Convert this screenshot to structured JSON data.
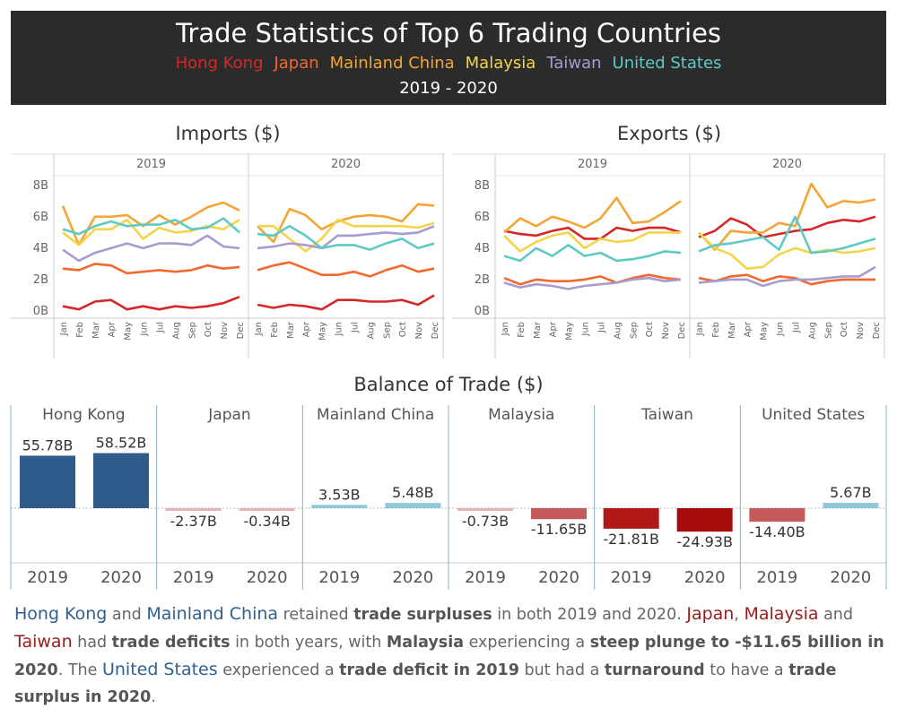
{
  "header": {
    "title": "Trade Statistics of Top 6 Trading Countries",
    "years": "2019 - 2020",
    "legend": [
      {
        "label": "Hong Kong",
        "color": "#d62728"
      },
      {
        "label": "Japan",
        "color": "#f1692e"
      },
      {
        "label": "Mainland China",
        "color": "#f3a636"
      },
      {
        "label": "Malaysia",
        "color": "#f3d44a"
      },
      {
        "label": "Taiwan",
        "color": "#a99bd0"
      },
      {
        "label": "United States",
        "color": "#5fc9c4"
      }
    ]
  },
  "summary": {
    "p1": "Hong Kong",
    "p2": " and ",
    "p3": "Mainland China",
    "p4": " retained ",
    "p5": "trade surpluses",
    "p6": " in both 2019 and 2020. ",
    "p7": "Japan",
    "p8": ", ",
    "p9": "Malaysia",
    "p10": " and ",
    "p11": "Taiwan",
    "p12": " had ",
    "p13": "trade deficits",
    "p14": " in both years, with ",
    "p15": "Malaysia",
    "p16": " experiencing a ",
    "p17": "steep plunge to -$11.65 billion in 2020",
    "p18": ". The ",
    "p19": "United States",
    "p20": " experienced a ",
    "p21": "trade deficit in 2019",
    "p22": " but had a ",
    "p23": "turnaround",
    "p24": " to have a ",
    "p25": "trade surplus in 2020",
    "p26": "."
  },
  "chart_data": [
    {
      "type": "line",
      "title": "Imports ($)",
      "panels": [
        "2019",
        "2020"
      ],
      "x": [
        "Jan",
        "Feb",
        "Mar",
        "Apr",
        "May",
        "Jun",
        "Jul",
        "Aug",
        "Sep",
        "Oct",
        "Nov",
        "Dec"
      ],
      "y_ticks": [
        "0B",
        "2B",
        "4B",
        "6B",
        "8B"
      ],
      "ylim": [
        0,
        8.5
      ],
      "series": [
        {
          "name": "Hong Kong",
          "color": "#d62728",
          "v2019": [
            0.3,
            0.1,
            0.6,
            0.7,
            0.1,
            0.3,
            0.1,
            0.3,
            0.2,
            0.3,
            0.5,
            0.9
          ],
          "v2020": [
            0.4,
            0.2,
            0.4,
            0.3,
            0.1,
            0.7,
            0.7,
            0.6,
            0.6,
            0.7,
            0.4,
            1.0
          ]
        },
        {
          "name": "Japan",
          "color": "#f1692e",
          "v2019": [
            2.7,
            2.6,
            3.0,
            2.9,
            2.4,
            2.5,
            2.6,
            2.5,
            2.6,
            2.9,
            2.7,
            2.8
          ],
          "v2020": [
            2.6,
            2.9,
            3.1,
            2.7,
            2.3,
            2.3,
            2.5,
            2.2,
            2.6,
            2.9,
            2.5,
            2.7
          ]
        },
        {
          "name": "Mainland China",
          "color": "#f3a636",
          "v2019": [
            6.7,
            4.2,
            6.0,
            6.0,
            6.1,
            5.4,
            6.1,
            5.5,
            6.0,
            6.6,
            6.9,
            6.4
          ],
          "v2020": [
            5.4,
            4.4,
            6.5,
            6.1,
            5.2,
            5.7,
            6.0,
            6.1,
            6.0,
            5.7,
            6.8,
            6.7
          ]
        },
        {
          "name": "Malaysia",
          "color": "#f3d44a",
          "v2019": [
            5.0,
            4.2,
            5.2,
            5.2,
            5.8,
            4.6,
            5.3,
            5.0,
            5.1,
            5.4,
            5.2,
            5.8
          ],
          "v2020": [
            5.4,
            5.4,
            4.6,
            3.8,
            4.6,
            5.8,
            5.4,
            5.4,
            5.4,
            5.4,
            5.3,
            5.6
          ]
        },
        {
          "name": "Taiwan",
          "color": "#a99bd0",
          "v2019": [
            3.9,
            3.2,
            3.7,
            4.0,
            4.3,
            4.0,
            4.3,
            4.3,
            4.2,
            4.8,
            4.1,
            4.0
          ],
          "v2020": [
            4.0,
            4.1,
            4.3,
            4.2,
            4.0,
            4.8,
            4.8,
            4.9,
            5.0,
            4.9,
            5.0,
            5.4
          ]
        },
        {
          "name": "United States",
          "color": "#5fc9c4",
          "v2019": [
            5.2,
            4.9,
            5.4,
            5.7,
            5.4,
            5.5,
            5.5,
            5.8,
            5.2,
            5.3,
            5.9,
            5.0
          ],
          "v2020": [
            4.9,
            4.8,
            5.4,
            4.8,
            4.0,
            4.2,
            4.2,
            3.9,
            4.3,
            4.6,
            4.0,
            4.3
          ]
        }
      ]
    },
    {
      "type": "line",
      "title": "Exports ($)",
      "panels": [
        "2019",
        "2020"
      ],
      "x": [
        "Jan",
        "Feb",
        "Mar",
        "Apr",
        "May",
        "Jun",
        "Jul",
        "Aug",
        "Sep",
        "Oct",
        "Nov",
        "Dec"
      ],
      "y_ticks": [
        "0B",
        "2B",
        "4B",
        "6B",
        "8B"
      ],
      "ylim": [
        0,
        8.5
      ],
      "series": [
        {
          "name": "Hong Kong",
          "color": "#d62728",
          "v2019": [
            5.1,
            4.9,
            4.8,
            5.1,
            5.3,
            4.6,
            4.6,
            5.3,
            5.1,
            5.3,
            5.3,
            5.0
          ],
          "v2020": [
            4.7,
            5.1,
            5.9,
            5.5,
            4.7,
            4.9,
            5.1,
            5.2,
            5.6,
            5.8,
            5.7,
            6.0
          ]
        },
        {
          "name": "Japan",
          "color": "#f1692e",
          "v2019": [
            2.1,
            1.7,
            2.0,
            1.9,
            1.9,
            2.0,
            2.2,
            1.8,
            2.1,
            2.3,
            2.1,
            2.0
          ],
          "v2020": [
            2.1,
            1.9,
            2.2,
            2.3,
            1.9,
            2.2,
            2.1,
            1.7,
            1.9,
            2.0,
            2.0,
            2.0
          ]
        },
        {
          "name": "Mainland China",
          "color": "#f3a636",
          "v2019": [
            5.0,
            5.9,
            5.4,
            6.0,
            5.7,
            5.3,
            5.9,
            7.2,
            5.6,
            5.7,
            6.3,
            7.0
          ],
          "v2020": [
            5.0,
            3.9,
            5.1,
            5.0,
            5.0,
            5.6,
            5.4,
            8.1,
            6.6,
            7.0,
            6.9,
            7.1
          ]
        },
        {
          "name": "Malaysia",
          "color": "#f3d44a",
          "v2019": [
            4.8,
            3.8,
            4.4,
            4.8,
            5.0,
            4.0,
            4.6,
            4.4,
            4.5,
            5.0,
            5.0,
            5.0
          ],
          "v2020": [
            5.0,
            4.0,
            3.6,
            2.7,
            2.8,
            3.6,
            4.0,
            3.7,
            3.9,
            3.7,
            3.8,
            4.0
          ]
        },
        {
          "name": "Taiwan",
          "color": "#a99bd0",
          "v2019": [
            1.8,
            1.5,
            1.7,
            1.6,
            1.4,
            1.6,
            1.7,
            1.8,
            2.0,
            2.1,
            1.9,
            2.0
          ],
          "v2020": [
            1.8,
            1.9,
            2.0,
            2.0,
            1.6,
            1.9,
            2.0,
            2.0,
            2.1,
            2.2,
            2.2,
            2.8
          ]
        },
        {
          "name": "United States",
          "color": "#5fc9c4",
          "v2019": [
            3.5,
            3.2,
            4.0,
            3.5,
            4.2,
            3.5,
            3.7,
            3.2,
            3.3,
            3.5,
            3.8,
            3.7
          ],
          "v2020": [
            3.8,
            4.2,
            4.3,
            4.5,
            4.7,
            3.9,
            6.0,
            3.7,
            3.8,
            4.0,
            4.3,
            4.6
          ]
        }
      ]
    },
    {
      "type": "bar",
      "title": "Balance of Trade ($)",
      "categories": [
        "Hong Kong",
        "Japan",
        "Mainland China",
        "Malaysia",
        "Taiwan",
        "United States"
      ],
      "years": [
        "2019",
        "2020"
      ],
      "ylim": [
        -40,
        70
      ],
      "values": [
        [
          55.78,
          58.52
        ],
        [
          -2.37,
          -0.34
        ],
        [
          3.53,
          5.48
        ],
        [
          -0.73,
          -11.65
        ],
        [
          -21.81,
          -24.93
        ],
        [
          -14.4,
          5.67
        ]
      ],
      "labels": [
        [
          "55.78B",
          "58.52B"
        ],
        [
          "-2.37B",
          "-0.34B"
        ],
        [
          "3.53B",
          "5.48B"
        ],
        [
          "-0.73B",
          "-11.65B"
        ],
        [
          "-21.81B",
          "-24.93B"
        ],
        [
          "-14.40B",
          "5.67B"
        ]
      ]
    }
  ]
}
